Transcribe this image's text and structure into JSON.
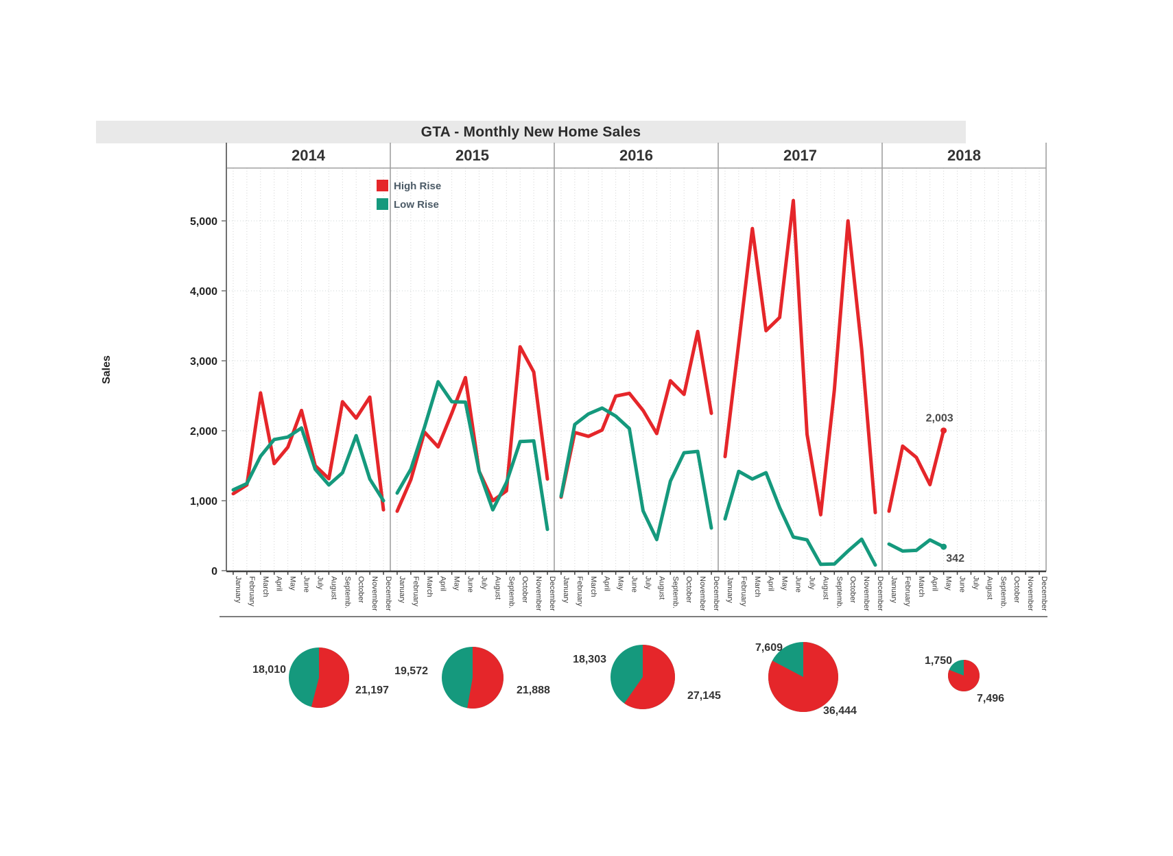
{
  "title": "GTA - Monthly New Home Sales",
  "colors": {
    "high_rise": "#e5262a",
    "low_rise": "#15997d",
    "band_bg": "#e9e9e9",
    "grid": "#ccd4d4",
    "separator": "#a0a0a0",
    "axis": "#3f3f3f",
    "tick_text": "#222222",
    "label_text": "#333333",
    "legend_text": "#4b5a66"
  },
  "legend": {
    "items": [
      {
        "label": "High Rise",
        "color_key": "high_rise"
      },
      {
        "label": "Low Rise",
        "color_key": "low_rise"
      }
    ]
  },
  "y_axis": {
    "title": "Sales",
    "tick_values": [
      0,
      1000,
      2000,
      3000,
      4000,
      5000
    ],
    "tick_labels": [
      "0",
      "1,000",
      "2,000",
      "3,000",
      "4,000",
      "5,000"
    ],
    "max_value": 5750
  },
  "months": [
    "January",
    "February",
    "March",
    "April",
    "May",
    "June",
    "July",
    "August",
    "Septemb.",
    "October",
    "November",
    "December"
  ],
  "chart_data": {
    "type": "line",
    "title": "GTA - Monthly New Home Sales",
    "ylabel": "Sales",
    "ylim": [
      0,
      5750
    ],
    "grid": true,
    "legend_position": "top-left-inside",
    "series_names": [
      "High Rise",
      "Low Rise"
    ],
    "years": [
      {
        "year": "2014",
        "high_rise": [
          1100,
          1225,
          2540,
          1530,
          1765,
          2290,
          1500,
          1315,
          2415,
          2180,
          2480,
          870
        ],
        "low_rise": [
          1155,
          1245,
          1635,
          1875,
          1910,
          2040,
          1450,
          1225,
          1400,
          1930,
          1310,
          1000
        ],
        "pie": {
          "high_total": 21197,
          "low_total": 18010,
          "high_label": "21,197",
          "low_label": "18,010"
        }
      },
      {
        "year": "2015",
        "high_rise": [
          850,
          1300,
          1980,
          1770,
          2250,
          2760,
          1420,
          1000,
          1140,
          3200,
          2840,
          1310
        ],
        "low_rise": [
          1110,
          1450,
          2050,
          2700,
          2415,
          2410,
          1420,
          870,
          1260,
          1845,
          1855,
          590
        ],
        "pie": {
          "high_total": 21888,
          "low_total": 19572,
          "high_label": "21,888",
          "low_label": "19,572"
        }
      },
      {
        "year": "2016",
        "high_rise": [
          1050,
          1975,
          1920,
          2010,
          2495,
          2535,
          2290,
          1960,
          2715,
          2520,
          3420,
          2250
        ],
        "low_rise": [
          1065,
          2090,
          2240,
          2325,
          2210,
          2030,
          855,
          445,
          1280,
          1685,
          1705,
          610
        ],
        "pie": {
          "high_total": 27145,
          "low_total": 18303,
          "high_label": "27,145",
          "low_label": "18,303"
        }
      },
      {
        "year": "2017",
        "high_rise": [
          1630,
          3250,
          4890,
          3430,
          3620,
          5290,
          1950,
          800,
          2580,
          5000,
          3170,
          830
        ],
        "low_rise": [
          740,
          1420,
          1310,
          1400,
          900,
          480,
          440,
          90,
          95,
          280,
          450,
          80
        ],
        "pie": {
          "high_total": 36444,
          "low_total": 7609,
          "high_label": "36,444",
          "low_label": "7,609"
        }
      },
      {
        "year": "2018",
        "high_rise": [
          850,
          1780,
          1620,
          1230,
          2003
        ],
        "low_rise": [
          380,
          280,
          290,
          440,
          342
        ],
        "pie": {
          "high_total": 7496,
          "low_total": 1750,
          "high_label": "7,496",
          "low_label": "1,750"
        }
      }
    ],
    "annotations": [
      {
        "series": "High Rise",
        "year": "2018",
        "month": "May",
        "label": "2,003",
        "value": 2003
      },
      {
        "series": "Low Rise",
        "year": "2018",
        "month": "May",
        "label": "342",
        "value": 342
      }
    ]
  }
}
